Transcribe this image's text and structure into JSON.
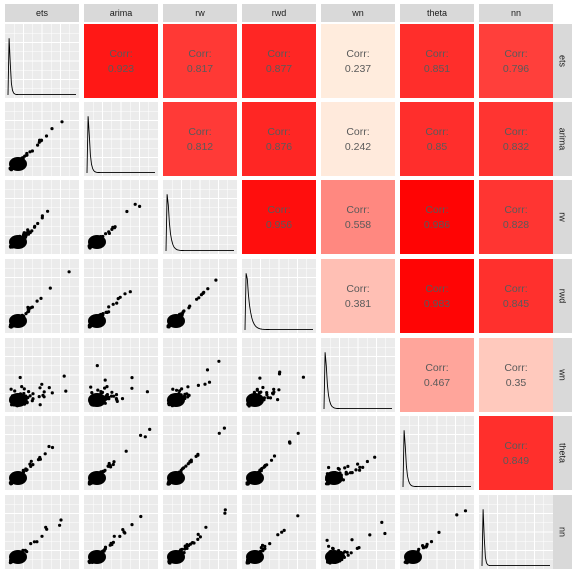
{
  "chart_data": {
    "type": "scatter-matrix",
    "variables": [
      "ets",
      "arima",
      "rw",
      "rwd",
      "wn",
      "theta",
      "nn"
    ],
    "corr_label": "Corr:",
    "correlations": [
      {
        "row": "ets",
        "col": "arima",
        "value": 0.923,
        "text": "0.923"
      },
      {
        "row": "ets",
        "col": "rw",
        "value": 0.817,
        "text": "0.817"
      },
      {
        "row": "ets",
        "col": "rwd",
        "value": 0.877,
        "text": "0.877"
      },
      {
        "row": "ets",
        "col": "wn",
        "value": 0.237,
        "text": "0.237"
      },
      {
        "row": "ets",
        "col": "theta",
        "value": 0.851,
        "text": "0.851"
      },
      {
        "row": "ets",
        "col": "nn",
        "value": 0.796,
        "text": "0.796"
      },
      {
        "row": "arima",
        "col": "rw",
        "value": 0.812,
        "text": "0.812"
      },
      {
        "row": "arima",
        "col": "rwd",
        "value": 0.876,
        "text": "0.876"
      },
      {
        "row": "arima",
        "col": "wn",
        "value": 0.242,
        "text": "0.242"
      },
      {
        "row": "arima",
        "col": "theta",
        "value": 0.85,
        "text": "0.85"
      },
      {
        "row": "arima",
        "col": "nn",
        "value": 0.832,
        "text": "0.832"
      },
      {
        "row": "rw",
        "col": "rwd",
        "value": 0.956,
        "text": "0.956"
      },
      {
        "row": "rw",
        "col": "wn",
        "value": 0.558,
        "text": "0.558"
      },
      {
        "row": "rw",
        "col": "theta",
        "value": 0.986,
        "text": "0.986"
      },
      {
        "row": "rw",
        "col": "nn",
        "value": 0.828,
        "text": "0.828"
      },
      {
        "row": "rwd",
        "col": "wn",
        "value": 0.381,
        "text": "0.381"
      },
      {
        "row": "rwd",
        "col": "theta",
        "value": 0.983,
        "text": "0.983"
      },
      {
        "row": "rwd",
        "col": "nn",
        "value": 0.845,
        "text": "0.845"
      },
      {
        "row": "wn",
        "col": "theta",
        "value": 0.467,
        "text": "0.467"
      },
      {
        "row": "wn",
        "col": "nn",
        "value": 0.35,
        "text": "0.35"
      },
      {
        "row": "theta",
        "col": "nn",
        "value": 0.849,
        "text": "0.849"
      }
    ],
    "color_scale": {
      "low": "#fff7e8",
      "high": "#ff0000",
      "domain": [
        0.2,
        1.0
      ]
    },
    "panel_background": "#ebebeb",
    "strip_background": "#d9d9d9",
    "point_color": "#000000",
    "grid": true,
    "diagonal": "density",
    "lower": "scatter"
  }
}
